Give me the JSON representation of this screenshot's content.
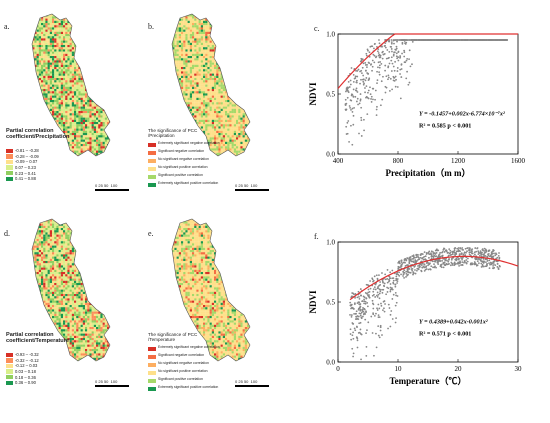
{
  "panels": {
    "a": {
      "label": "a.",
      "legend_title": "Partial correlation coefficient/Precipitation",
      "legend": [
        {
          "text": "-0.81 – -0.28",
          "color": "#d73027"
        },
        {
          "text": "-0.28 – -0.09",
          "color": "#fc8d59"
        },
        {
          "text": "-0.09 – 0.07",
          "color": "#fee08b"
        },
        {
          "text": "0.07 – 0.23",
          "color": "#d9ef8b"
        },
        {
          "text": "0.23 – 0.41",
          "color": "#91cf60"
        },
        {
          "text": "0.41 – 0.88",
          "color": "#1a9850"
        }
      ]
    },
    "b": {
      "label": "b.",
      "legend_title": "The significance of PCC /Precipitation",
      "legend": [
        {
          "text": "Extremely significant negative correlation",
          "color": "#d73027"
        },
        {
          "text": "Significant negative correlation",
          "color": "#f46d43"
        },
        {
          "text": "No significant negative correlation",
          "color": "#fdae61"
        },
        {
          "text": "No significant positive correlation",
          "color": "#fee08b"
        },
        {
          "text": "Significant positive correlation",
          "color": "#a6d96a"
        },
        {
          "text": "Extremely significant positive correlation",
          "color": "#1a9850"
        }
      ]
    },
    "d": {
      "label": "d.",
      "legend_title": "Partial correlation coefficient/Temperature",
      "legend": [
        {
          "text": "-0.93 – -0.32",
          "color": "#d73027"
        },
        {
          "text": "-0.32 – -0.12",
          "color": "#fc8d59"
        },
        {
          "text": "-0.12 – 0.03",
          "color": "#fee08b"
        },
        {
          "text": "0.03 – 0.18",
          "color": "#d9ef8b"
        },
        {
          "text": "0.18 – 0.36",
          "color": "#91cf60"
        },
        {
          "text": "0.36 – 0.90",
          "color": "#1a9850"
        }
      ]
    },
    "e": {
      "label": "e.",
      "legend_title": "The significance of PCC /Temperature",
      "legend": [
        {
          "text": "Extremely significant negative correlation",
          "color": "#d73027"
        },
        {
          "text": "Significant negative correlation",
          "color": "#f46d43"
        },
        {
          "text": "No significant negative correlation",
          "color": "#fdae61"
        },
        {
          "text": "No significant positive correlation",
          "color": "#fee08b"
        },
        {
          "text": "Significant positive correlation",
          "color": "#a6d96a"
        },
        {
          "text": "Extremely significant positive correlation",
          "color": "#1a9850"
        }
      ]
    },
    "c": {
      "label": "c."
    },
    "f": {
      "label": "f."
    }
  },
  "scalebar": {
    "labels": [
      "0",
      "25",
      "50",
      "100"
    ],
    "unit": "km"
  },
  "chart_data": [
    {
      "type": "scatter",
      "xlabel": "Precipitation（m m）",
      "ylabel": "NDVI",
      "xlim": [
        400,
        1600
      ],
      "ylim": [
        0,
        1
      ],
      "xticks": [
        "400",
        "800",
        "1200",
        "1600"
      ],
      "yticks": [
        "0.0",
        "0.5",
        "1.0"
      ],
      "equation": "Y = -0.1457+0.002x-6.774×10⁻⁷x²",
      "r2": "R² = 0.585",
      "p": "p < 0.001",
      "fit": {
        "a": -0.1457,
        "b": 0.002,
        "c": -6.774e-07
      },
      "point_color": "#888888",
      "fit_color": "#e03030"
    },
    {
      "type": "scatter",
      "xlabel": "Temperature（℃）",
      "ylabel": "NDVI",
      "xlim": [
        0,
        30
      ],
      "ylim": [
        0,
        1
      ],
      "xticks": [
        "0",
        "10",
        "20",
        "30"
      ],
      "yticks": [
        "0.0",
        "0.5",
        "1.0"
      ],
      "equation": "Y = 0.4389+0.042x-0.001x²",
      "r2": "R² = 0.571",
      "p": "p < 0.001",
      "fit": {
        "a": 0.4389,
        "b": 0.042,
        "c": -0.001
      },
      "point_color": "#888888",
      "fit_color": "#e03030"
    }
  ]
}
